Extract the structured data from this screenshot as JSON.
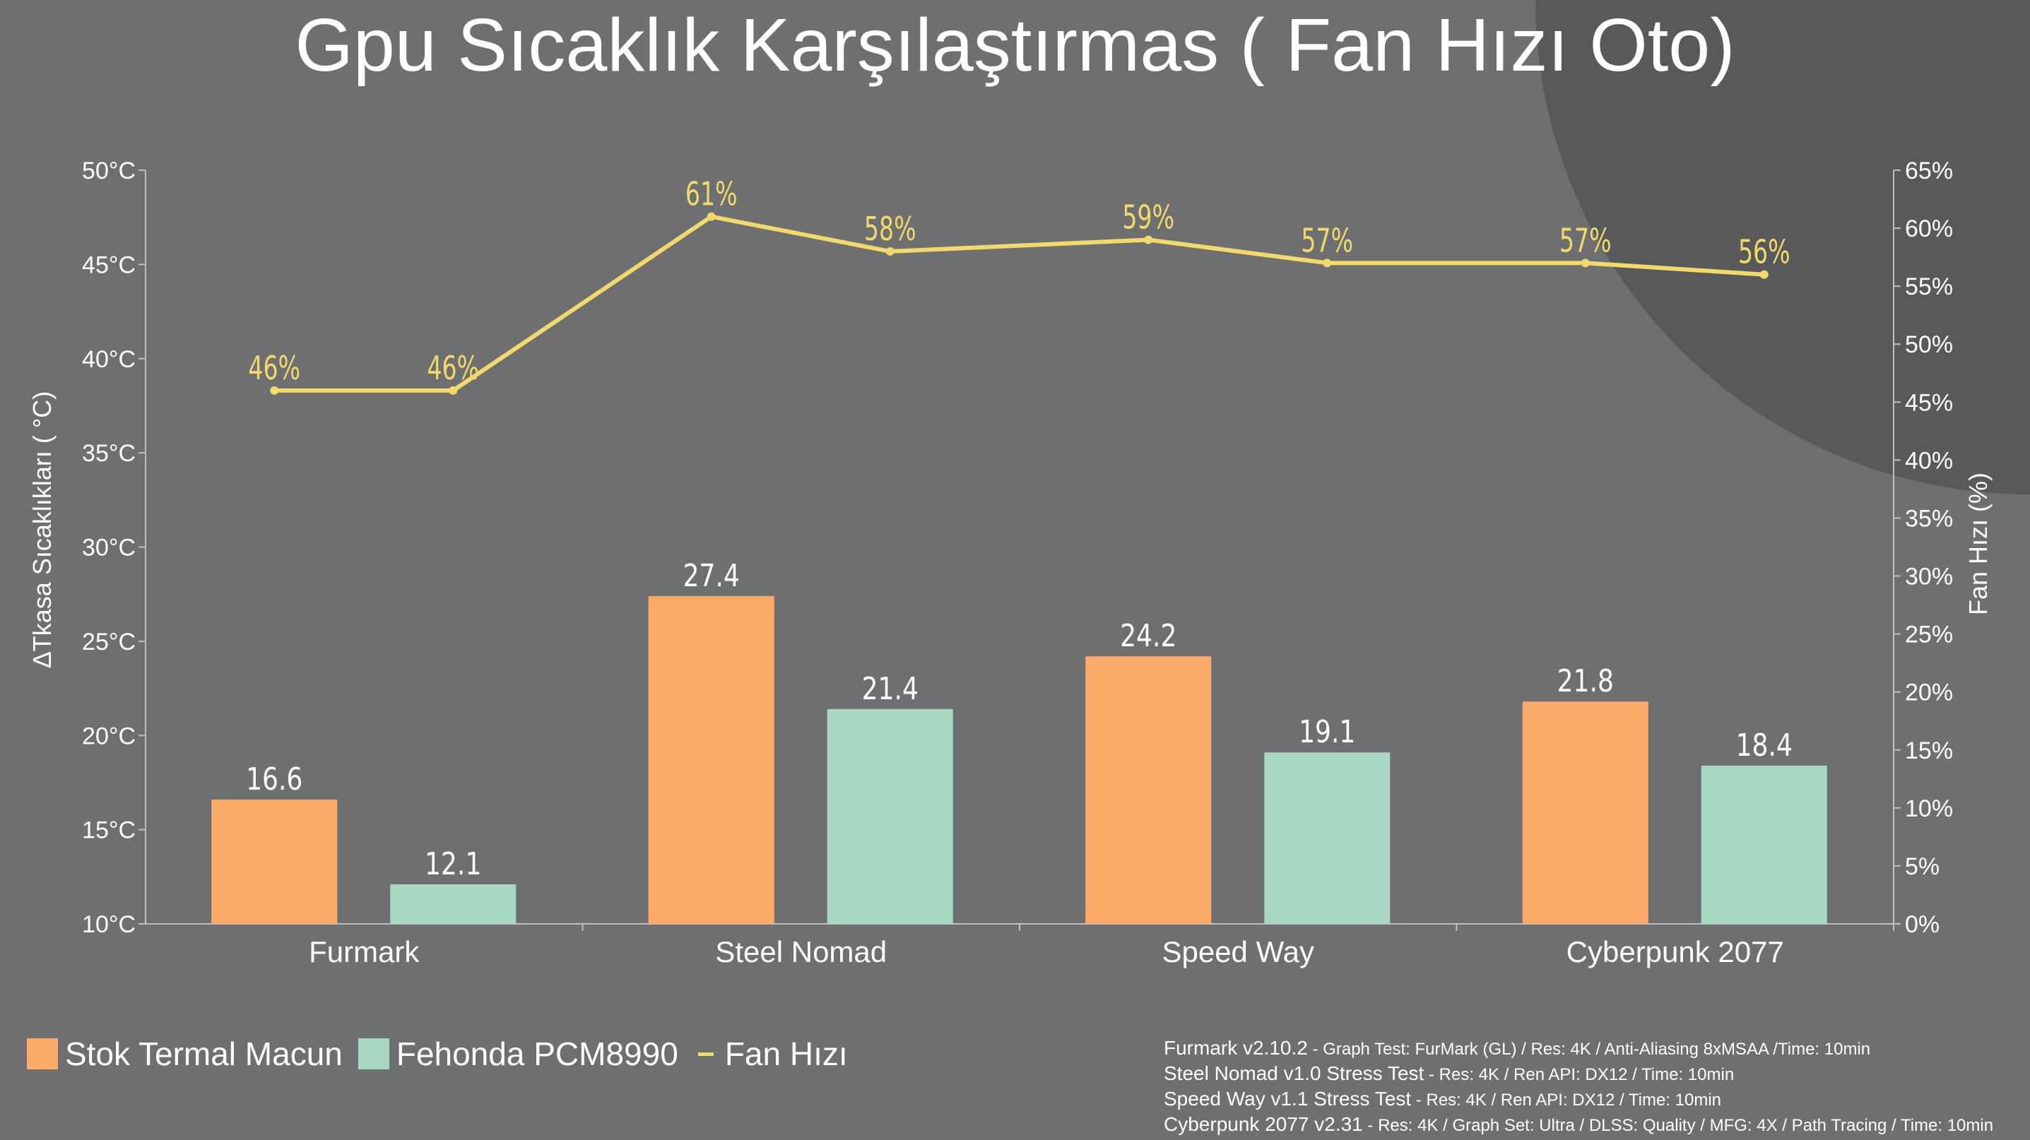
{
  "title": "Gpu Sıcaklık Karşılaştırmas ( Fan Hızı Oto)",
  "colors": {
    "background": "#6e6f71",
    "corner_shape": "#58595b",
    "stock": "#fcaa67",
    "fehonda": "#a8d8c2",
    "fan": "#f2d96a",
    "axis": "#bfbfbf",
    "text": "#ffffff"
  },
  "chart_data": {
    "type": "bar",
    "categories": [
      "Furmark",
      "Steel Nomad",
      "Speed Way",
      "Cyberpunk 2077"
    ],
    "series": [
      {
        "name": "Stok Termal Macun",
        "values": [
          16.6,
          27.4,
          24.2,
          21.8
        ],
        "labels": [
          "16.6",
          "27.4",
          "24.2",
          "21.8"
        ],
        "axis": "left"
      },
      {
        "name": "Fehonda PCM8990",
        "values": [
          12.1,
          21.4,
          19.1,
          18.4
        ],
        "labels": [
          "12.1",
          "21.4",
          "19.1",
          "18.4"
        ],
        "axis": "left"
      }
    ],
    "line": {
      "name": "Fan Hızı",
      "type": "line",
      "axis": "right",
      "values": [
        46,
        46,
        61,
        58,
        59,
        57,
        57,
        56
      ],
      "labels": [
        "46%",
        "46%",
        "61%",
        "58%",
        "59%",
        "57%",
        "57%",
        "56%"
      ]
    },
    "ylabel": "ΔTkasa Sıcaklıkları ( °C)",
    "y2label": "Fan Hızı (%)",
    "ylim": [
      10,
      50
    ],
    "y2lim": [
      0,
      65
    ],
    "yticks": [
      "10°C",
      "15°C",
      "20°C",
      "25°C",
      "30°C",
      "35°C",
      "40°C",
      "45°C",
      "50°C"
    ],
    "y2ticks": [
      "0%",
      "5%",
      "10%",
      "15%",
      "20%",
      "25%",
      "30%",
      "35%",
      "40%",
      "45%",
      "50%",
      "55%",
      "60%",
      "65%"
    ],
    "grid": false,
    "legend": "bottom-left"
  },
  "legend": {
    "stock": "Stok Termal Macun",
    "fehonda": "Fehonda PCM8990",
    "fan": "Fan Hızı"
  },
  "notes": [
    {
      "bench": "Furmark v2.10.2",
      "spec": " - Graph Test: FurMark (GL) / Res: 4K / Anti-Aliasing 8xMSAA /Time: 10min"
    },
    {
      "bench": "Steel Nomad v1.0 Stress Test",
      "spec": " - Res: 4K / Ren API: DX12 / Time: 10min"
    },
    {
      "bench": "Speed Way v1.1 Stress Test",
      "spec": " - Res: 4K / Ren API: DX12 / Time: 10min"
    },
    {
      "bench": "Cyberpunk 2077 v2.31",
      "spec": " - Res: 4K / Graph Set: Ultra / DLSS: Quality / MFG: 4X / Path Tracing / Time: 10min"
    }
  ]
}
